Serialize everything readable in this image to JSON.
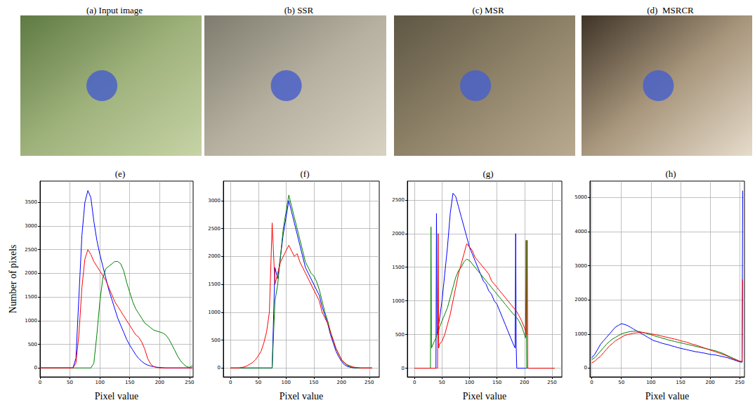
{
  "images": [
    {
      "title": "(a) Input image"
    },
    {
      "title": "(b) SSR"
    },
    {
      "title": "(c) MSR"
    },
    {
      "title": "(d)  MSRCR"
    }
  ],
  "chart_data": [
    {
      "type": "line",
      "title": "(e)",
      "x_label": "Pixel value",
      "y_label": "Number of pixels",
      "grid": true,
      "xlim": [
        0,
        256
      ],
      "xticks": [
        0,
        50,
        100,
        150,
        200,
        250
      ],
      "ylim": [
        -190,
        3950
      ],
      "yticks": [
        0,
        500,
        1000,
        1500,
        2000,
        2500,
        3000,
        3500
      ],
      "x": [
        0,
        5,
        10,
        15,
        20,
        25,
        30,
        35,
        40,
        45,
        50,
        55,
        60,
        65,
        70,
        75,
        80,
        85,
        90,
        95,
        100,
        105,
        110,
        115,
        120,
        125,
        130,
        135,
        140,
        145,
        150,
        155,
        160,
        165,
        170,
        175,
        180,
        185,
        190,
        195,
        200,
        205,
        210,
        215,
        220,
        225,
        230,
        235,
        240,
        245,
        250,
        255
      ],
      "series": [
        {
          "color": "#0000ff",
          "values": [
            0,
            0,
            0,
            0,
            0,
            0,
            0,
            0,
            0,
            0,
            0,
            0,
            200,
            1500,
            2800,
            3500,
            3750,
            3600,
            3100,
            2700,
            2400,
            2150,
            1900,
            1650,
            1450,
            1250,
            1050,
            900,
            750,
            600,
            480,
            380,
            280,
            200,
            140,
            90,
            60,
            40,
            25,
            15,
            10,
            5,
            0,
            0,
            0,
            0,
            0,
            0,
            0,
            0,
            0,
            0
          ]
        },
        {
          "color": "#008000",
          "values": [
            0,
            0,
            0,
            0,
            0,
            0,
            0,
            0,
            0,
            0,
            0,
            0,
            0,
            0,
            0,
            0,
            0,
            0,
            100,
            700,
            1400,
            1900,
            2100,
            2150,
            2200,
            2250,
            2250,
            2200,
            2050,
            1800,
            1600,
            1400,
            1250,
            1150,
            1050,
            950,
            900,
            850,
            800,
            780,
            760,
            740,
            700,
            620,
            500,
            380,
            250,
            150,
            80,
            30,
            10,
            50
          ]
        },
        {
          "color": "#ff0000",
          "values": [
            0,
            0,
            0,
            0,
            0,
            0,
            0,
            0,
            0,
            0,
            0,
            0,
            100,
            700,
            1700,
            2300,
            2500,
            2400,
            2250,
            2150,
            2050,
            1950,
            1850,
            1700,
            1550,
            1400,
            1300,
            1200,
            1100,
            1000,
            900,
            800,
            700,
            650,
            550,
            400,
            200,
            80,
            30,
            10,
            0,
            0,
            0,
            0,
            0,
            0,
            0,
            0,
            0,
            0,
            0,
            0
          ]
        }
      ]
    },
    {
      "type": "line",
      "title": "(f)",
      "x_label": "Pixel value",
      "grid": true,
      "xlim": [
        -13,
        268
      ],
      "xticks": [
        0,
        50,
        100,
        150,
        200,
        250
      ],
      "ylim": [
        -160,
        3350
      ],
      "yticks": [
        0,
        500,
        1000,
        1500,
        2000,
        2500,
        3000
      ],
      "x": [
        0,
        5,
        10,
        15,
        20,
        25,
        30,
        35,
        40,
        45,
        50,
        55,
        60,
        65,
        70,
        75,
        80,
        85,
        90,
        95,
        100,
        105,
        110,
        115,
        120,
        125,
        130,
        135,
        140,
        145,
        150,
        155,
        160,
        165,
        170,
        175,
        180,
        185,
        190,
        195,
        200,
        205,
        210,
        215,
        220,
        225,
        230,
        235,
        240,
        245,
        250,
        255
      ],
      "series": [
        {
          "color": "#0000ff",
          "values": [
            0,
            0,
            0,
            0,
            0,
            0,
            0,
            0,
            0,
            0,
            0,
            0,
            0,
            0,
            0,
            0,
            1800,
            1600,
            2000,
            2400,
            2700,
            3000,
            2800,
            2600,
            2400,
            2200,
            2000,
            1800,
            1700,
            1600,
            1500,
            1400,
            1300,
            1100,
            950,
            800,
            600,
            450,
            300,
            200,
            120,
            60,
            30,
            15,
            5,
            0,
            0,
            0,
            0,
            0,
            0,
            0
          ]
        },
        {
          "color": "#008000",
          "values": [
            0,
            0,
            0,
            0,
            0,
            0,
            0,
            0,
            0,
            0,
            0,
            0,
            0,
            0,
            0,
            0,
            1200,
            1500,
            2000,
            2500,
            2800,
            3100,
            2900,
            2700,
            2500,
            2300,
            2100,
            1900,
            1800,
            1700,
            1650,
            1550,
            1400,
            1200,
            1000,
            850,
            650,
            500,
            350,
            250,
            150,
            90,
            50,
            25,
            10,
            0,
            0,
            0,
            0,
            0,
            0,
            0
          ]
        },
        {
          "color": "#ff0000",
          "values": [
            0,
            0,
            0,
            0,
            10,
            20,
            40,
            70,
            100,
            150,
            220,
            300,
            450,
            650,
            1000,
            2600,
            1500,
            1700,
            1900,
            2000,
            2100,
            2200,
            2100,
            2000,
            2050,
            1900,
            1800,
            1700,
            1600,
            1500,
            1400,
            1300,
            1200,
            1000,
            900,
            800,
            650,
            500,
            350,
            250,
            150,
            100,
            60,
            40,
            20,
            10,
            5,
            0,
            0,
            0,
            0,
            0
          ]
        }
      ]
    },
    {
      "type": "line",
      "title": "(g)",
      "x_label": "Pixel value",
      "grid": true,
      "xlim": [
        -13,
        268
      ],
      "xticks": [
        0,
        50,
        100,
        150,
        200,
        250
      ],
      "ylim": [
        -130,
        2780
      ],
      "yticks": [
        0,
        500,
        1000,
        1500,
        2000,
        2500
      ],
      "x": [
        0,
        29,
        30,
        31,
        35,
        39,
        40,
        41,
        42,
        43,
        44,
        45,
        50,
        55,
        60,
        65,
        70,
        75,
        80,
        85,
        90,
        95,
        100,
        105,
        110,
        115,
        120,
        125,
        130,
        135,
        140,
        145,
        150,
        155,
        160,
        165,
        170,
        175,
        180,
        183,
        184,
        185,
        186,
        190,
        195,
        200,
        202,
        203,
        204,
        205,
        206,
        207,
        210,
        255
      ],
      "series": [
        {
          "color": "#0000ff",
          "values": [
            0,
            0,
            0,
            0,
            0,
            0,
            2300,
            500,
            550,
            600,
            650,
            700,
            1000,
            1400,
            1800,
            2300,
            2600,
            2550,
            2400,
            2250,
            2100,
            1950,
            1800,
            1700,
            1600,
            1500,
            1400,
            1300,
            1250,
            1150,
            1100,
            1000,
            950,
            850,
            750,
            650,
            550,
            450,
            350,
            300,
            2000,
            300,
            0,
            0,
            0,
            0,
            0,
            0,
            0,
            0,
            0,
            0,
            0,
            0
          ]
        },
        {
          "color": "#008000",
          "values": [
            0,
            0,
            2100,
            300,
            380,
            450,
            480,
            500,
            520,
            540,
            560,
            600,
            700,
            800,
            900,
            1050,
            1200,
            1350,
            1450,
            1500,
            1580,
            1620,
            1600,
            1550,
            1500,
            1450,
            1400,
            1350,
            1300,
            1250,
            1200,
            1150,
            1100,
            1050,
            1000,
            950,
            900,
            850,
            800,
            780,
            770,
            760,
            750,
            700,
            620,
            500,
            450,
            1900,
            0,
            0,
            0,
            0,
            0,
            0
          ]
        },
        {
          "color": "#ff0000",
          "values": [
            0,
            0,
            0,
            0,
            0,
            0,
            0,
            0,
            0,
            2000,
            300,
            350,
            400,
            500,
            650,
            800,
            1000,
            1200,
            1400,
            1550,
            1700,
            1850,
            1800,
            1750,
            1650,
            1600,
            1550,
            1500,
            1450,
            1400,
            1300,
            1250,
            1200,
            1150,
            1100,
            1050,
            1000,
            950,
            900,
            870,
            860,
            850,
            840,
            780,
            700,
            600,
            550,
            520,
            500,
            1900,
            0,
            0,
            0,
            0
          ]
        }
      ]
    },
    {
      "type": "line",
      "title": "(h)",
      "x_label": "Pixel value",
      "grid": true,
      "xlim": [
        -3,
        258
      ],
      "xticks": [
        0,
        50,
        100,
        150,
        200,
        250
      ],
      "ylim": [
        -260,
        5480
      ],
      "yticks": [
        0,
        1000,
        2000,
        3000,
        4000,
        5000
      ],
      "x": [
        0,
        5,
        10,
        15,
        20,
        25,
        30,
        35,
        40,
        45,
        50,
        55,
        60,
        65,
        70,
        75,
        80,
        85,
        90,
        95,
        100,
        105,
        110,
        115,
        120,
        125,
        130,
        135,
        140,
        145,
        150,
        155,
        160,
        165,
        170,
        175,
        180,
        185,
        190,
        195,
        200,
        205,
        210,
        215,
        220,
        225,
        230,
        235,
        240,
        245,
        250,
        254,
        255
      ],
      "series": [
        {
          "color": "#0000ff",
          "values": [
            300,
            400,
            550,
            700,
            800,
            900,
            1000,
            1100,
            1200,
            1250,
            1300,
            1280,
            1250,
            1200,
            1150,
            1100,
            1050,
            1000,
            950,
            900,
            850,
            800,
            780,
            750,
            720,
            700,
            680,
            650,
            630,
            600,
            580,
            560,
            540,
            520,
            500,
            480,
            470,
            450,
            440,
            420,
            400,
            390,
            380,
            360,
            340,
            320,
            300,
            270,
            240,
            210,
            180,
            170,
            5200
          ]
        },
        {
          "color": "#008000",
          "values": [
            250,
            300,
            400,
            500,
            600,
            700,
            780,
            850,
            900,
            950,
            1000,
            1030,
            1050,
            1070,
            1080,
            1080,
            1070,
            1050,
            1030,
            1000,
            980,
            950,
            920,
            900,
            870,
            850,
            820,
            800,
            780,
            760,
            740,
            720,
            700,
            680,
            660,
            640,
            620,
            600,
            580,
            560,
            540,
            520,
            500,
            470,
            440,
            400,
            360,
            320,
            280,
            240,
            200,
            190,
            200
          ]
        },
        {
          "color": "#ff0000",
          "values": [
            150,
            200,
            280,
            350,
            450,
            550,
            650,
            720,
            800,
            850,
            900,
            950,
            980,
            1000,
            1020,
            1030,
            1040,
            1040,
            1030,
            1020,
            1000,
            990,
            970,
            950,
            930,
            910,
            890,
            870,
            850,
            830,
            800,
            780,
            760,
            730,
            700,
            680,
            650,
            620,
            590,
            560,
            530,
            500,
            470,
            440,
            410,
            380,
            340,
            300,
            260,
            230,
            200,
            190,
            2600
          ]
        }
      ]
    }
  ]
}
